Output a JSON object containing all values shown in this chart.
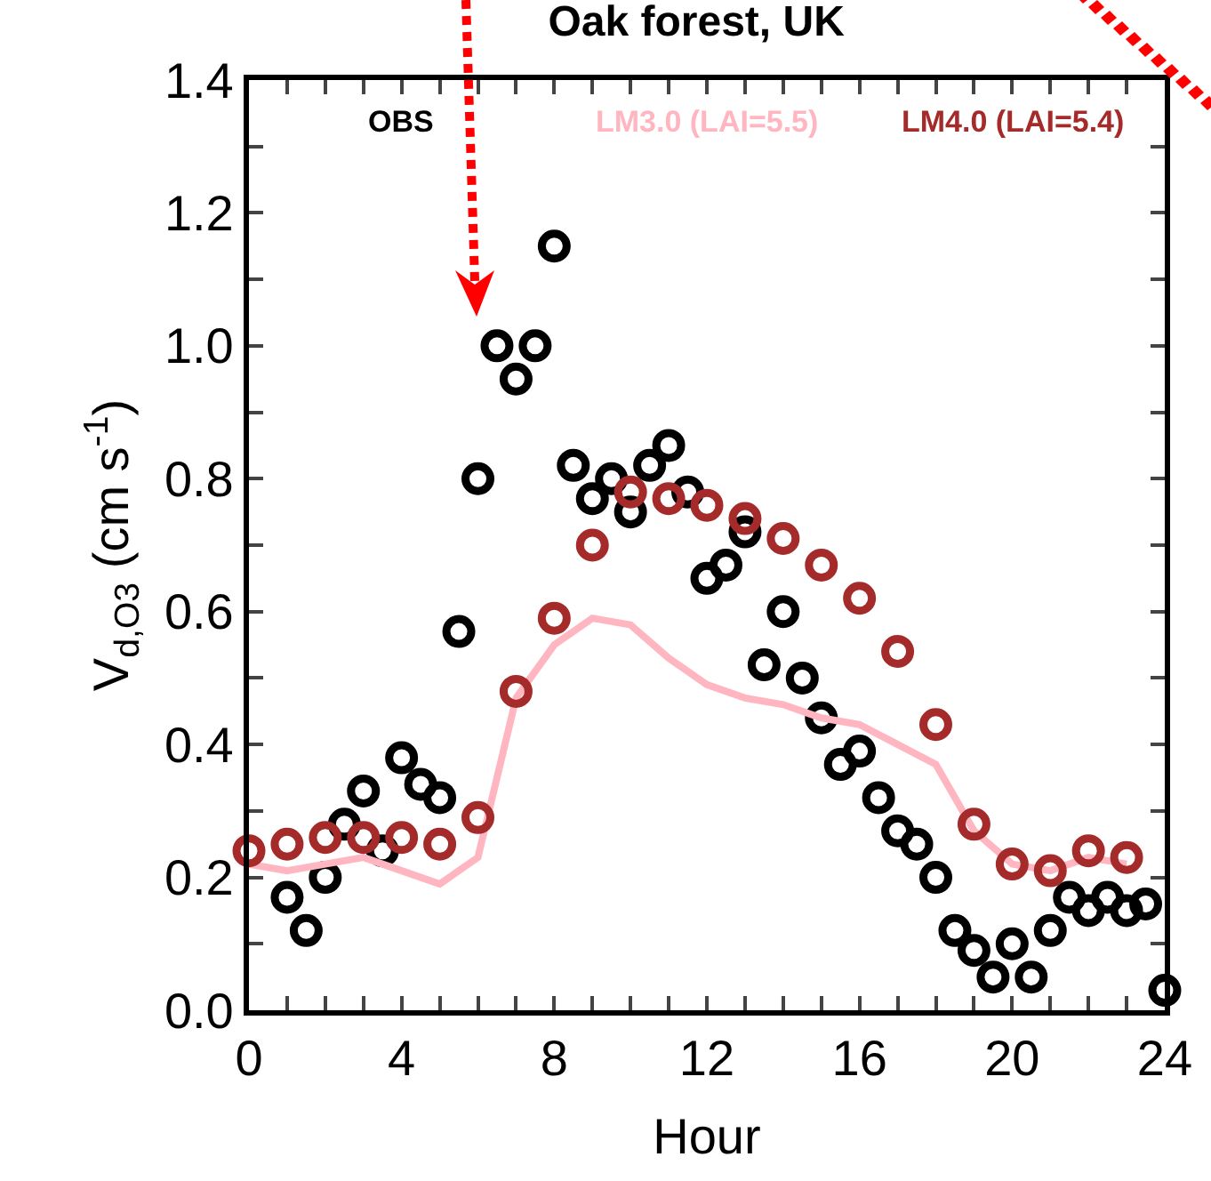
{
  "chart_data": {
    "type": "scatter",
    "title": "Oak forest, UK",
    "xlabel": "Hour",
    "ylabel": "V$_{d,O3}$ (cm s$^{-1}$)",
    "xlim": [
      0,
      24
    ],
    "xticks": [
      0,
      {
        "value": 1,
        "label": null
      },
      {
        "value": 2,
        "label": null
      },
      {
        "value": 3,
        "label": null
      },
      4,
      {
        "value": 5,
        "label": null
      },
      {
        "value": 6,
        "label": null
      },
      {
        "value": 7,
        "label": null
      },
      8,
      {
        "value": 9,
        "label": null
      },
      {
        "value": 10,
        "label": null
      },
      {
        "value": 11,
        "label": null
      },
      12,
      {
        "value": 13,
        "label": null
      },
      {
        "value": 14,
        "label": null
      },
      {
        "value": 15,
        "label": null
      },
      16,
      {
        "value": 17,
        "label": null
      },
      {
        "value": 18,
        "label": null
      },
      {
        "value": 19,
        "label": null
      },
      20,
      {
        "value": 21,
        "label": null
      },
      {
        "value": 22,
        "label": null
      },
      {
        "value": 23,
        "label": null
      },
      24
    ],
    "ylim": [
      0,
      1.4
    ],
    "yticks": [
      {
        "value": 0,
        "label": "0.0"
      },
      {
        "value": 0.1,
        "label": null
      },
      {
        "value": 0.2,
        "label": "0.2"
      },
      {
        "value": 0.3,
        "label": null
      },
      {
        "value": 0.4,
        "label": "0.4"
      },
      {
        "value": 0.5,
        "label": null
      },
      {
        "value": 0.6,
        "label": "0.6"
      },
      {
        "value": 0.7,
        "label": null
      },
      {
        "value": 0.8,
        "label": "0.8"
      },
      {
        "value": 0.9,
        "label": null
      },
      {
        "value": 1.0,
        "label": "1.0"
      },
      {
        "value": 1.1,
        "label": null
      },
      {
        "value": 1.2,
        "label": "1.2"
      },
      {
        "value": 1.3,
        "label": null
      },
      {
        "value": 1.4,
        "label": "1.4"
      }
    ],
    "grid": false,
    "legend": "top",
    "marker": "circle",
    "series": [
      {
        "name": "OBS",
        "color": "#000000",
        "x": [
          1,
          1.5,
          2,
          2.5,
          3,
          3.5,
          4,
          4.5,
          5,
          5.5,
          6,
          6.5,
          7,
          7.5,
          8,
          8.5,
          9,
          9.5,
          10,
          10.5,
          11,
          11.5,
          12,
          12.5,
          13,
          13.5,
          14,
          14.5,
          15,
          15.5,
          16,
          16.5,
          17,
          17.5,
          18,
          18.5,
          19,
          19.5,
          20,
          20.5,
          21,
          21.5,
          22,
          22.5,
          23,
          23.5,
          24
        ],
        "values": [
          0.17,
          0.12,
          0.2,
          0.28,
          0.33,
          0.24,
          0.38,
          0.34,
          0.32,
          0.57,
          0.8,
          1.0,
          0.95,
          1.0,
          1.15,
          0.82,
          0.77,
          0.8,
          0.75,
          0.82,
          0.85,
          0.78,
          0.65,
          0.67,
          0.72,
          0.52,
          0.6,
          0.5,
          0.44,
          0.37,
          0.39,
          0.32,
          0.27,
          0.25,
          0.2,
          0.12,
          0.09,
          0.05,
          0.1,
          0.05,
          0.12,
          0.17,
          0.15,
          0.17,
          0.15,
          0.16,
          0.03
        ]
      },
      {
        "name": "LM3.0 (LAI=5.5)",
        "color": "#ffb6c1",
        "type": "line",
        "marker": "none",
        "x": [
          0,
          1,
          2,
          3,
          4,
          5,
          6,
          7,
          8,
          9,
          10,
          11,
          12,
          13,
          14,
          15,
          16,
          17,
          18,
          19,
          20,
          21,
          22,
          23
        ],
        "values": [
          0.22,
          0.21,
          0.22,
          0.23,
          0.21,
          0.19,
          0.23,
          0.47,
          0.55,
          0.59,
          0.58,
          0.53,
          0.49,
          0.47,
          0.46,
          0.44,
          0.43,
          0.4,
          0.37,
          0.27,
          0.22,
          0.21,
          0.23,
          0.22
        ]
      },
      {
        "name": "LM4.0 (LAI=5.4)",
        "color": "#a52a2a",
        "x": [
          0,
          1,
          2,
          3,
          4,
          5,
          6,
          7,
          8,
          9,
          10,
          11,
          12,
          13,
          14,
          15,
          16,
          17,
          18,
          19,
          20,
          21,
          22,
          23
        ],
        "values": [
          0.24,
          0.25,
          0.26,
          0.26,
          0.26,
          0.25,
          0.29,
          0.48,
          0.59,
          0.7,
          0.78,
          0.77,
          0.76,
          0.74,
          0.71,
          0.67,
          0.62,
          0.54,
          0.43,
          0.28,
          0.22,
          0.21,
          0.24,
          0.23
        ]
      }
    ]
  }
}
